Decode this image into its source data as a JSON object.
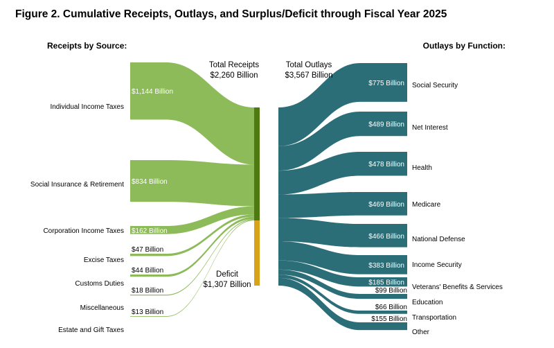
{
  "title": "Figure 2. Cumulative Receipts, Outlays, and Surplus/Deficit through Fiscal Year 2025",
  "receipts_header": "Receipts by Source:",
  "outlays_header": "Outlays by Function:",
  "total_receipts": {
    "label": "Total Receipts",
    "value": "$2,260 Billion"
  },
  "total_outlays": {
    "label": "Total Outlays",
    "value": "$3,567 Billion"
  },
  "deficit": {
    "label": "Deficit",
    "value": "$1,307 Billion"
  },
  "colors": {
    "receipts": "#8dbb5a",
    "receipts_bar": "#4f7a12",
    "deficit": "#d9a21b",
    "outlays": "#2c6e78"
  },
  "chart_data": {
    "type": "sankey",
    "receipts": [
      {
        "name": "Individual Income Taxes",
        "value": 1144,
        "value_label": "$1,144 Billion"
      },
      {
        "name": "Social Insurance & Retirement",
        "value": 834,
        "value_label": "$834 Billion"
      },
      {
        "name": "Corporation Income Taxes",
        "value": 162,
        "value_label": "$162 Billion"
      },
      {
        "name": "Excise Taxes",
        "value": 47,
        "value_label": "$47 Billion"
      },
      {
        "name": "Customs Duties",
        "value": 44,
        "value_label": "$44 Billion"
      },
      {
        "name": "Miscellaneous",
        "value": 18,
        "value_label": "$18 Billion"
      },
      {
        "name": "Estate and Gift Taxes",
        "value": 13,
        "value_label": "$13 Billion"
      }
    ],
    "outlays": [
      {
        "name": "Social Security",
        "value": 775,
        "value_label": "$775 Billion"
      },
      {
        "name": "Net Interest",
        "value": 489,
        "value_label": "$489 Billion"
      },
      {
        "name": "Health",
        "value": 478,
        "value_label": "$478 Billion"
      },
      {
        "name": "Medicare",
        "value": 469,
        "value_label": "$469 Billion"
      },
      {
        "name": "National Defense",
        "value": 466,
        "value_label": "$466 Billion"
      },
      {
        "name": "Income Security",
        "value": 383,
        "value_label": "$383 Billion"
      },
      {
        "name": "Veterans' Benefits & Services",
        "value": 185,
        "value_label": "$185 Billion"
      },
      {
        "name": "Education",
        "value": 99,
        "value_label": "$99 Billion"
      },
      {
        "name": "Transportation",
        "value": 66,
        "value_label": "$66 Billion"
      },
      {
        "name": "Other",
        "value": 155,
        "value_label": "$155 Billion"
      }
    ]
  }
}
